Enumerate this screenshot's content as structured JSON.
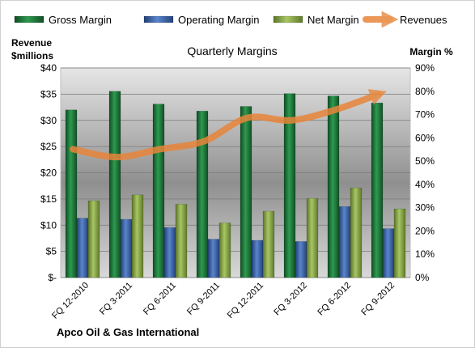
{
  "chart_data": {
    "type": "bar",
    "title": "Quarterly Margins",
    "company": "Apco Oil & Gas International",
    "left_axis_label": [
      "Revenue",
      "$millions"
    ],
    "right_axis_label": "Margin %",
    "categories": [
      "FQ 12-2010",
      "FQ 3-2011",
      "FQ 6-2011",
      "FQ 9-2011",
      "FQ 12-2011",
      "FQ 3-2012",
      "FQ 6-2012",
      "FQ 9-2012"
    ],
    "left_axis": {
      "min": 0,
      "max": 40,
      "step": 5,
      "tick_labels": [
        "$-",
        "$5",
        "$10",
        "$15",
        "$20",
        "$25",
        "$30",
        "$35",
        "$40"
      ]
    },
    "right_axis": {
      "min": 0,
      "max": 90,
      "step": 10,
      "tick_labels": [
        "0%",
        "10%",
        "20%",
        "30%",
        "40%",
        "50%",
        "60%",
        "70%",
        "80%",
        "90%"
      ]
    },
    "series": [
      {
        "name": "Gross Margin",
        "kind": "bar",
        "axis": "right",
        "color": "#1f7a3c",
        "values": [
          72,
          80,
          74.5,
          71.5,
          73.5,
          79,
          78,
          75
        ]
      },
      {
        "name": "Operating Margin",
        "kind": "bar",
        "axis": "right",
        "color": "#3a64a8",
        "values": [
          25.5,
          25,
          21.5,
          16.5,
          16,
          15.5,
          30.5,
          21
        ]
      },
      {
        "name": "Net Margin",
        "kind": "bar",
        "axis": "right",
        "color": "#8ba845",
        "values": [
          33,
          35.5,
          31.5,
          23.5,
          28.5,
          34,
          38.5,
          29.5
        ]
      },
      {
        "name": "Revenues",
        "kind": "line",
        "axis": "left",
        "color": "#e8853a",
        "values": [
          24.5,
          23,
          24.5,
          26,
          30.5,
          30,
          32,
          35
        ]
      }
    ],
    "legend_position": "top",
    "grid": true
  }
}
